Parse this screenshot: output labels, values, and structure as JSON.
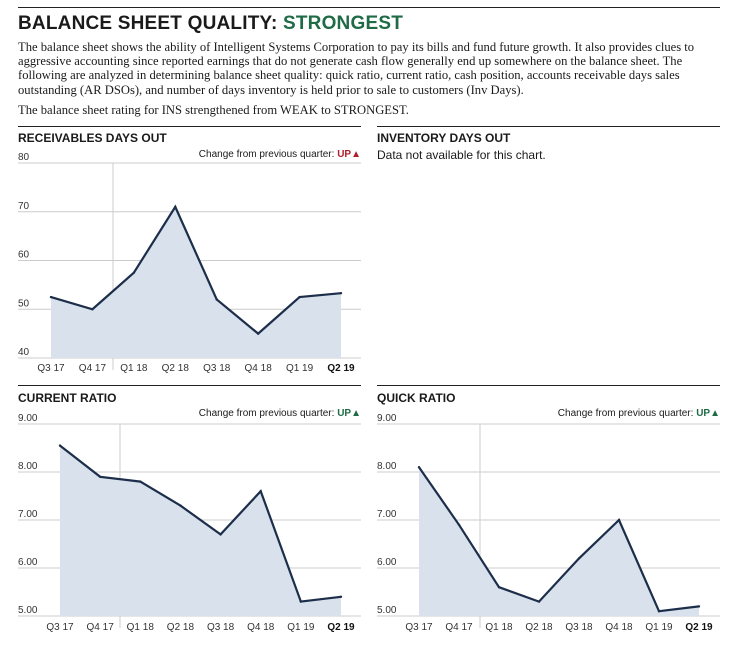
{
  "header": {
    "title_prefix": "BALANCE SHEET QUALITY: ",
    "title_rating": "STRONGEST",
    "description": "The balance sheet shows the ability of Intelligent Systems Corporation to pay its bills and fund future growth. It also provides clues to aggressive accounting since reported earnings that do not generate cash flow generally end up somewhere on the balance sheet. The following are analyzed in determining balance sheet quality: quick ratio, current ratio, cash position, accounts receivable days sales outstanding (AR DSOs), and number of days inventory is held prior to sale to customers (Inv Days).",
    "rating_note": "The balance sheet rating for INS strengthened from WEAK to STRONGEST."
  },
  "inventory": {
    "title": "INVENTORY DAYS OUT",
    "note": "Data not available for this chart."
  },
  "colors": {
    "line": "#1c2e4a",
    "area": "#d9e1ec",
    "grid": "#cccccc",
    "up_red": "#b01e2a",
    "up_green": "#1f6b46",
    "rating_green": "#1f6b46"
  },
  "chart_data": [
    {
      "id": "receivables",
      "type": "area",
      "title": "RECEIVABLES DAYS OUT",
      "change_label": "Change from previous quarter: ",
      "change_value": "UP",
      "change_symbol": "▲",
      "categories": [
        "Q3 17",
        "Q4 17",
        "Q1 18",
        "Q2 18",
        "Q3 18",
        "Q4 18",
        "Q1 19",
        "Q2 19"
      ],
      "bold_category": "Q2 19",
      "values": [
        52.5,
        50,
        57.5,
        71,
        52,
        45,
        52.5,
        53.3
      ],
      "ylim": [
        40,
        80
      ],
      "yticks": [
        "40",
        "50",
        "60",
        "70",
        "80"
      ],
      "ytick_values": [
        40,
        50,
        60,
        70,
        80
      ]
    },
    {
      "id": "current",
      "type": "area",
      "title": "CURRENT RATIO",
      "change_label": "Change from previous quarter: ",
      "change_value": "UP",
      "change_symbol": "▲",
      "categories": [
        "Q3 17",
        "Q4 17",
        "Q1 18",
        "Q2 18",
        "Q3 18",
        "Q4 18",
        "Q1 19",
        "Q2 19"
      ],
      "bold_category": "Q2 19",
      "values": [
        8.55,
        7.9,
        7.8,
        7.3,
        6.7,
        7.6,
        5.3,
        5.4
      ],
      "ylim": [
        5,
        9
      ],
      "yticks": [
        "5.00",
        "6.00",
        "7.00",
        "8.00",
        "9.00"
      ],
      "ytick_values": [
        5,
        6,
        7,
        8,
        9
      ]
    },
    {
      "id": "quick",
      "type": "area",
      "title": "QUICK RATIO",
      "change_label": "Change from previous quarter: ",
      "change_value": "UP",
      "change_symbol": "▲",
      "categories": [
        "Q3 17",
        "Q4 17",
        "Q1 18",
        "Q2 18",
        "Q3 18",
        "Q4 18",
        "Q1 19",
        "Q2 19"
      ],
      "bold_category": "Q2 19",
      "values": [
        8.1,
        6.9,
        5.6,
        5.3,
        6.2,
        7.0,
        5.1,
        5.2
      ],
      "ylim": [
        5,
        9
      ],
      "yticks": [
        "5.00",
        "6.00",
        "7.00",
        "8.00",
        "9.00"
      ],
      "ytick_values": [
        5,
        6,
        7,
        8,
        9
      ]
    }
  ]
}
